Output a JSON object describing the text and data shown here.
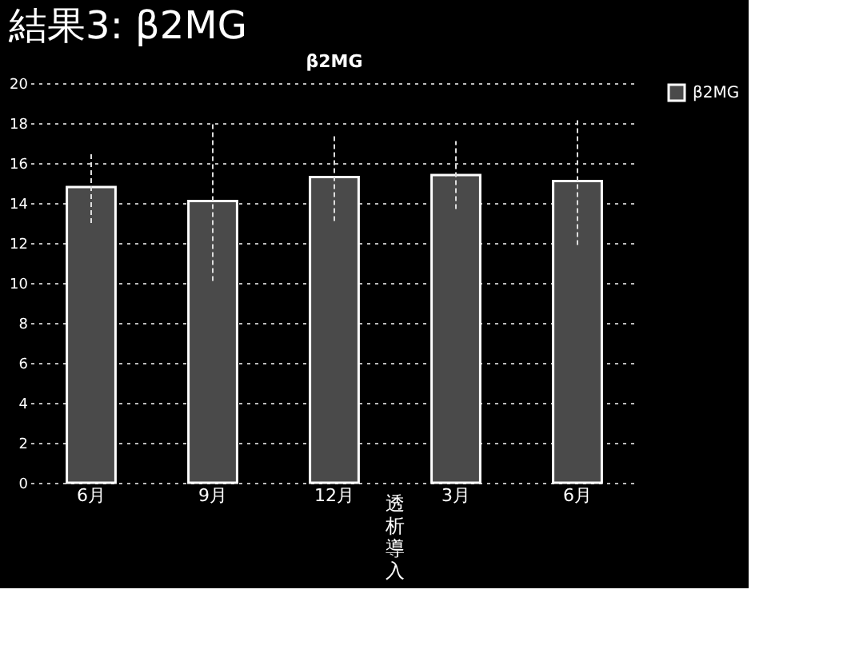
{
  "chart_data": {
    "type": "bar",
    "title": "結果3: β2MG",
    "subtitle": "β2MG",
    "categories": [
      "6月",
      "9月",
      "12月",
      "3月",
      "6月"
    ],
    "series": [
      {
        "name": "β2MG",
        "color": "#4a4a4a",
        "values": [
          14.8,
          14.1,
          15.3,
          15.4,
          15.1
        ],
        "errors": [
          1.8,
          4.0,
          2.2,
          1.7,
          3.2
        ]
      }
    ],
    "ylim": [
      0,
      20
    ],
    "yticks": [
      0,
      2,
      4,
      6,
      8,
      10,
      12,
      14,
      16,
      18,
      20
    ],
    "grid": "y",
    "legend": "right",
    "annotations": [
      "透析導入"
    ]
  }
}
